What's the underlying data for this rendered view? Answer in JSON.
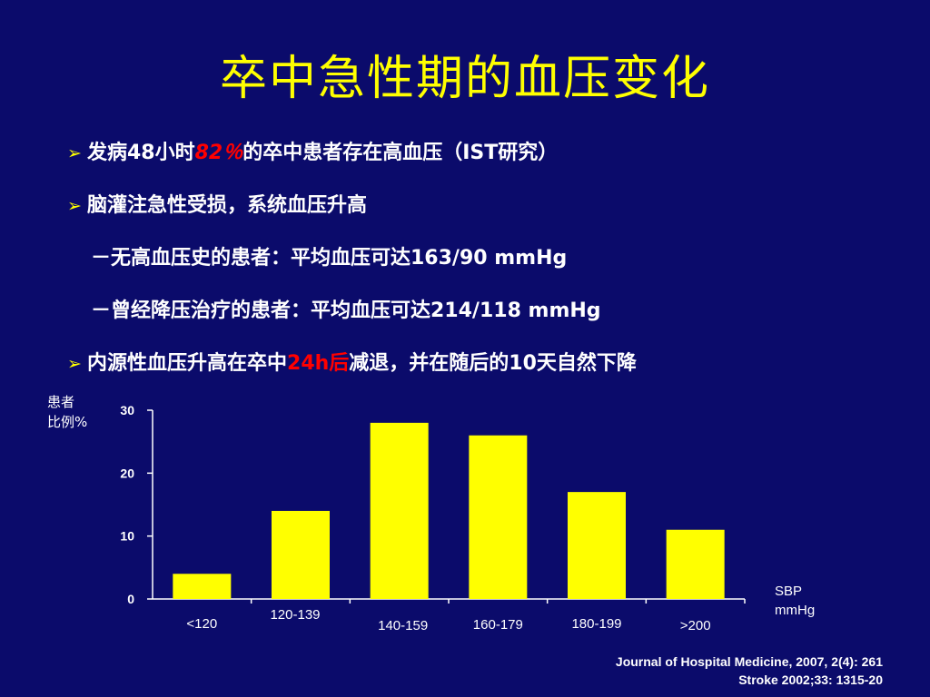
{
  "slide": {
    "title": "卒中急性期的血压变化",
    "bullet_marker": "➢",
    "bullets": [
      {
        "pre": "发病48小时",
        "hl": "82％",
        "post": "的卒中患者存在高血压（IST研究）"
      },
      {
        "text": "脑灌注急性受损，系统血压升高"
      },
      {
        "text": "－无高血压史的患者：平均血压可达163/90 mmHg"
      },
      {
        "text": "－曾经降压治疗的患者：平均血压可达214/118 mmHg"
      },
      {
        "pre": "内源性血压升高在卒中",
        "hl": "24h后",
        "post": "减退，并在随后的10天自然下降"
      }
    ],
    "references": [
      "Journal of Hospital Medicine, 2007, 2(4): 261",
      "Stroke 2002;33: 1315-20"
    ]
  },
  "chart_data": {
    "type": "bar",
    "categories": [
      "<120",
      "120-139",
      "140-159",
      "160-179",
      "180-199",
      ">200"
    ],
    "values": [
      4,
      14,
      28,
      26,
      17,
      11
    ],
    "ylabel_line1": "患者",
    "ylabel_line2": "比例%",
    "xunit_line1": "SBP",
    "xunit_line2": "mmHg",
    "ylim": [
      0,
      30
    ],
    "yticks": [
      0,
      10,
      20,
      30
    ],
    "bar_color": "#ffff00",
    "axis_color": "#ffffff",
    "grid": false
  }
}
